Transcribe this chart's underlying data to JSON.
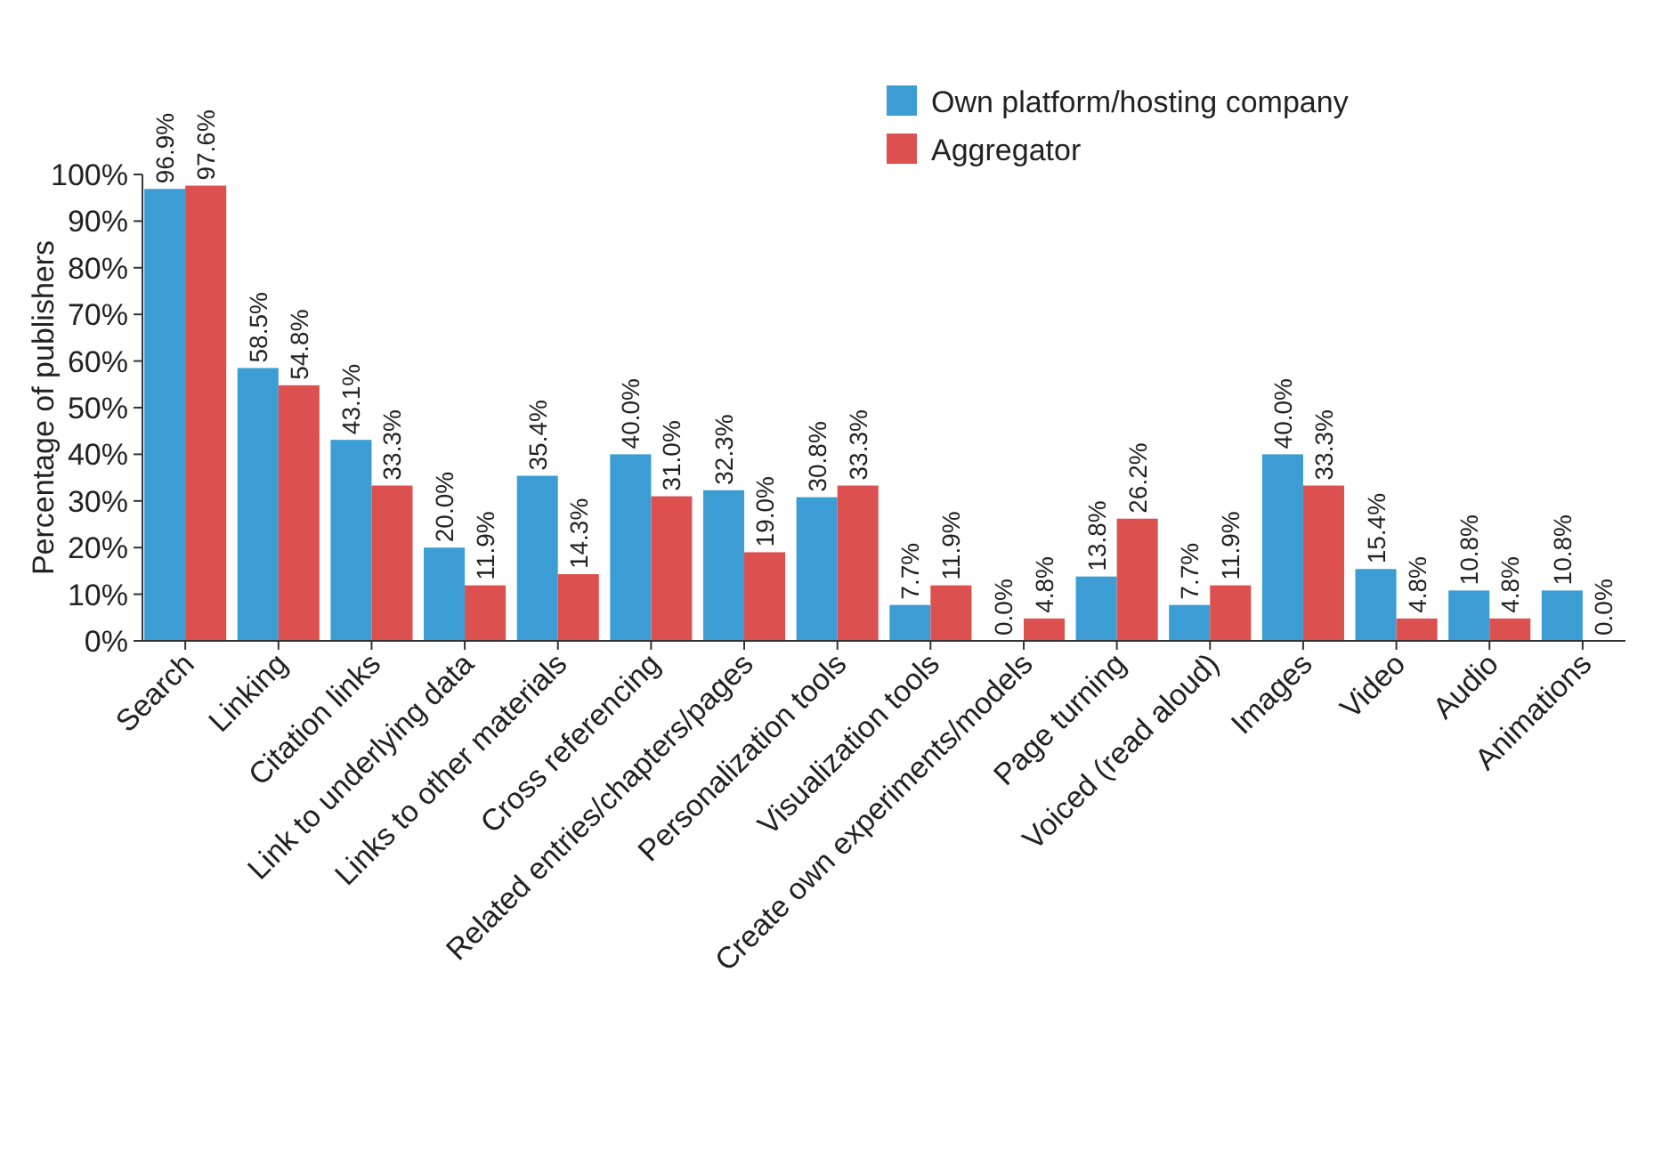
{
  "chart_data": {
    "type": "bar",
    "ylabel": "Percentage of publishers",
    "categories": [
      "Search",
      "Linking",
      "Citation links",
      "Link to underlying data",
      "Links to other materials",
      "Cross referencing",
      "Related entries/chapters/pages",
      "Personalization tools",
      "Visualization tools",
      "Create own experiments/models",
      "Page turning",
      "Voiced (read aloud)",
      "Images",
      "Video",
      "Audio",
      "Animations"
    ],
    "series": [
      {
        "name": "Own platform/hosting company",
        "color": "#3b9dd3",
        "values": [
          96.9,
          58.5,
          43.1,
          20.0,
          35.4,
          40.0,
          32.3,
          30.8,
          7.7,
          0.0,
          13.8,
          7.7,
          40.0,
          15.4,
          10.8,
          10.8
        ],
        "value_labels": [
          "96.9%",
          "58.5%",
          "43.1%",
          "20.0%",
          "35.4%",
          "40.0%",
          "32.3%",
          "30.8%",
          "7.7%",
          "0.0%",
          "13.8%",
          "7.7%",
          "40.0%",
          "15.4%",
          "10.8%",
          "10.8%"
        ]
      },
      {
        "name": "Aggregator",
        "color": "#dd5050",
        "values": [
          97.6,
          54.8,
          33.3,
          11.9,
          14.3,
          31.0,
          19.0,
          33.3,
          11.9,
          4.8,
          26.2,
          11.9,
          33.3,
          4.8,
          4.8,
          0.0
        ],
        "value_labels": [
          "97.6%",
          "54.8%",
          "33.3%",
          "11.9%",
          "14.3%",
          "31.0%",
          "19.0%",
          "33.3%",
          "11.9%",
          "4.8%",
          "26.2%",
          "11.9%",
          "33.3%",
          "4.8%",
          "4.8%",
          "0.0%"
        ]
      }
    ],
    "ylim": [
      0,
      100
    ],
    "yticks": [
      {
        "value": 0,
        "label": "0%"
      },
      {
        "value": 10,
        "label": "10%"
      },
      {
        "value": 20,
        "label": "20%"
      },
      {
        "value": 30,
        "label": "30%"
      },
      {
        "value": 40,
        "label": "40%"
      },
      {
        "value": 50,
        "label": "50%"
      },
      {
        "value": 60,
        "label": "60%"
      },
      {
        "value": 70,
        "label": "70%"
      },
      {
        "value": 80,
        "label": "80%"
      },
      {
        "value": 90,
        "label": "90%"
      },
      {
        "value": 100,
        "label": "100%"
      }
    ],
    "grid": false,
    "legend": "top right"
  }
}
